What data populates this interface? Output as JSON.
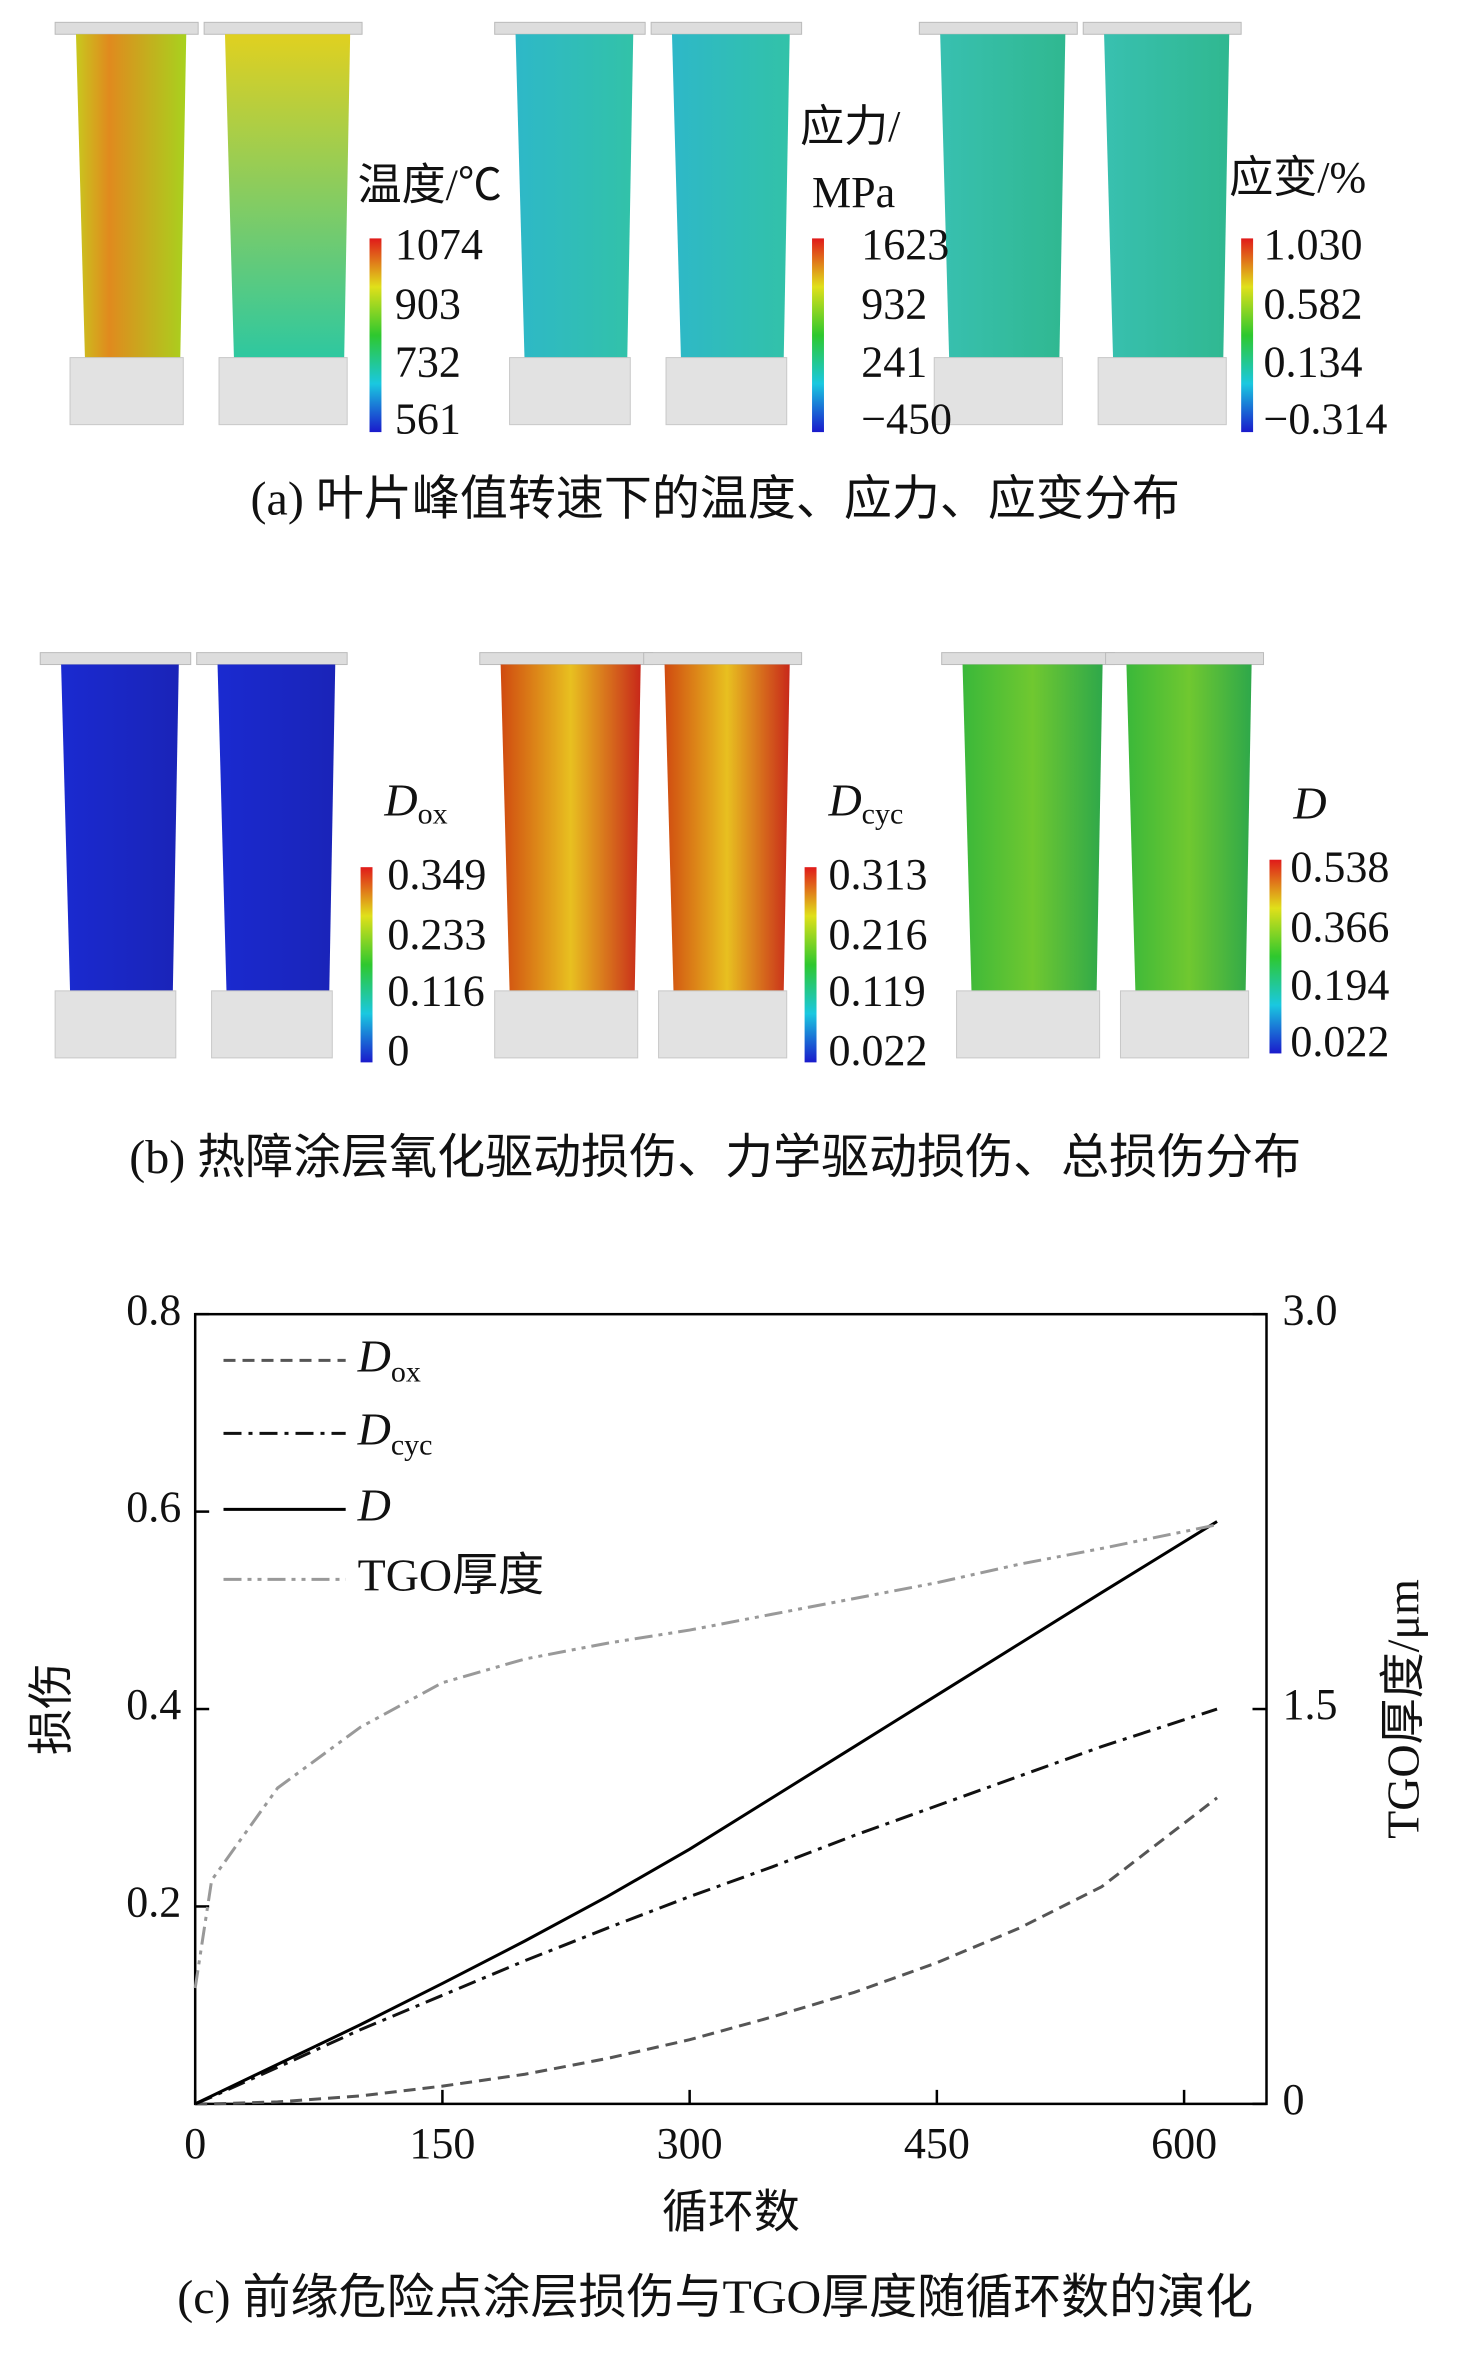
{
  "panel_a": {
    "caption": "(a) 叶片峰值转速下的温度、应力、应变分布",
    "colorbars": [
      {
        "title": [
          "温度/℃"
        ],
        "ticks": [
          "1074",
          "903",
          "732",
          "561"
        ]
      },
      {
        "title": [
          "应力/",
          "MPa"
        ],
        "ticks": [
          "1623",
          "932",
          "241",
          "−450"
        ]
      },
      {
        "title": [
          "应变/%"
        ],
        "ticks": [
          "1.030",
          "0.582",
          "0.134",
          "−0.314"
        ]
      }
    ]
  },
  "panel_b": {
    "caption": "(b) 热障涂层氧化驱动损伤、力学驱动损伤、总损伤分布",
    "colorbars": [
      {
        "title": "D",
        "subscript": "ox",
        "ticks": [
          "0.349",
          "0.233",
          "0.116",
          "0"
        ]
      },
      {
        "title": "D",
        "subscript": "cyc",
        "ticks": [
          "0.313",
          "0.216",
          "0.119",
          "0.022"
        ]
      },
      {
        "title": "D",
        "ticks": [
          "0.538",
          "0.366",
          "0.194",
          "0.022"
        ]
      }
    ]
  },
  "chart_data": {
    "type": "line",
    "caption": "(c)  前缘危险点涂层损伤与TGO厚度随循环数的演化",
    "x_label": "循环数",
    "y_label": "损伤",
    "y2_label": "TGO厚度/μm",
    "x": [
      0,
      10,
      50,
      100,
      150,
      200,
      250,
      300,
      350,
      400,
      450,
      500,
      550,
      620
    ],
    "series": [
      {
        "name": "D",
        "subscript": "ox",
        "color": "#555555",
        "dash": "dashed",
        "values": [
          0,
          0,
          0.002,
          0.008,
          0.018,
          0.03,
          0.046,
          0.065,
          0.088,
          0.113,
          0.143,
          0.178,
          0.22,
          0.31
        ]
      },
      {
        "name": "D",
        "subscript": "cyc",
        "color": "#111111",
        "dash": "dashdot",
        "values": [
          0,
          0.007,
          0.037,
          0.075,
          0.11,
          0.145,
          0.178,
          0.21,
          0.24,
          0.272,
          0.302,
          0.332,
          0.362,
          0.4
        ]
      },
      {
        "name": "D",
        "color": "#000000",
        "dash": "solid",
        "values": [
          0,
          0.008,
          0.04,
          0.08,
          0.122,
          0.165,
          0.21,
          0.258,
          0.31,
          0.362,
          0.414,
          0.466,
          0.518,
          0.59
        ]
      },
      {
        "name": "TGO厚度",
        "color": "#999999",
        "dash": "dashdotdot",
        "axis": "y2",
        "values": [
          0.44,
          0.85,
          1.2,
          1.43,
          1.6,
          1.69,
          1.75,
          1.8,
          1.86,
          1.92,
          1.98,
          2.05,
          2.11,
          2.2
        ]
      }
    ],
    "xlim": [
      0,
      650
    ],
    "xticks": [
      0,
      150,
      300,
      450,
      600
    ],
    "ylim": [
      0,
      0.8
    ],
    "yticks": [
      0.2,
      0.4,
      0.6,
      0.8
    ],
    "y2lim": [
      0,
      3
    ],
    "y2ticks": [
      0,
      1.5,
      {
        "value": 3,
        "label": "3.0"
      }
    ],
    "legend": "upper left"
  }
}
